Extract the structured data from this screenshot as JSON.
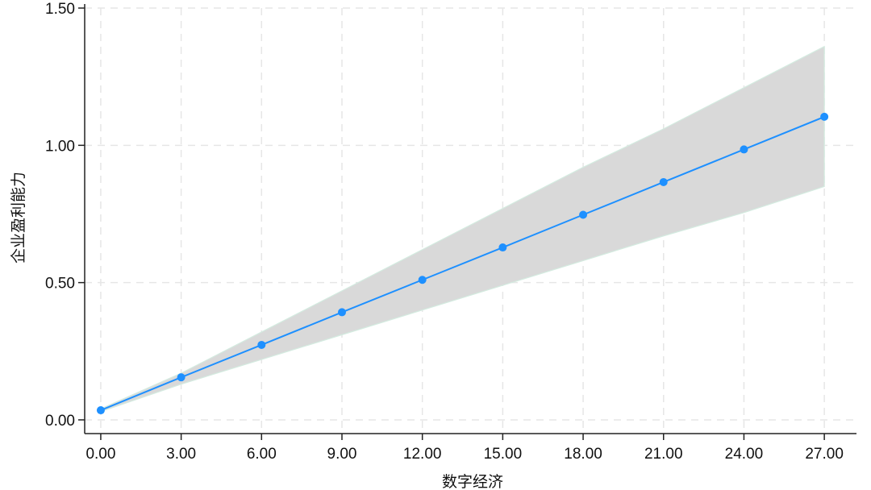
{
  "chart_data": {
    "type": "line",
    "title": "",
    "xlabel": "数字经济",
    "ylabel": "企业盈利能力",
    "xlim": [
      -0.6,
      28.2
    ],
    "ylim": [
      -0.05,
      1.5
    ],
    "x_ticks": [
      0,
      3,
      6,
      9,
      12,
      15,
      18,
      21,
      24,
      27
    ],
    "x_tick_labels": [
      "0.00",
      "3.00",
      "6.00",
      "9.00",
      "12.00",
      "15.00",
      "18.00",
      "21.00",
      "24.00",
      "27.00"
    ],
    "y_ticks": [
      0,
      0.5,
      1.0,
      1.5
    ],
    "y_tick_labels": [
      "0.00",
      "0.50",
      "1.00",
      "1.50"
    ],
    "grid": true,
    "series": [
      {
        "x": [
          0,
          3,
          6,
          9,
          12,
          15,
          18,
          21,
          24,
          27
        ],
        "y": [
          0.035,
          0.155,
          0.273,
          0.392,
          0.51,
          0.628,
          0.747,
          0.866,
          0.985,
          1.104
        ],
        "color": "#1e90ff",
        "marker": "circle"
      }
    ],
    "confidence_band": {
      "x": [
        0,
        3,
        6,
        9,
        12,
        15,
        18,
        21,
        24,
        27
      ],
      "lower": [
        0.03,
        0.13,
        0.22,
        0.31,
        0.4,
        0.49,
        0.58,
        0.67,
        0.755,
        0.85
      ],
      "upper": [
        0.04,
        0.17,
        0.32,
        0.47,
        0.62,
        0.77,
        0.92,
        1.06,
        1.21,
        1.36
      ],
      "color": "#d9d9d9"
    },
    "colors": {
      "line": "#1e90ff",
      "band": "#d9d9d9",
      "band_edge": "#d4ebe0",
      "grid": "#e6e6e6",
      "axis": "#222222"
    }
  }
}
